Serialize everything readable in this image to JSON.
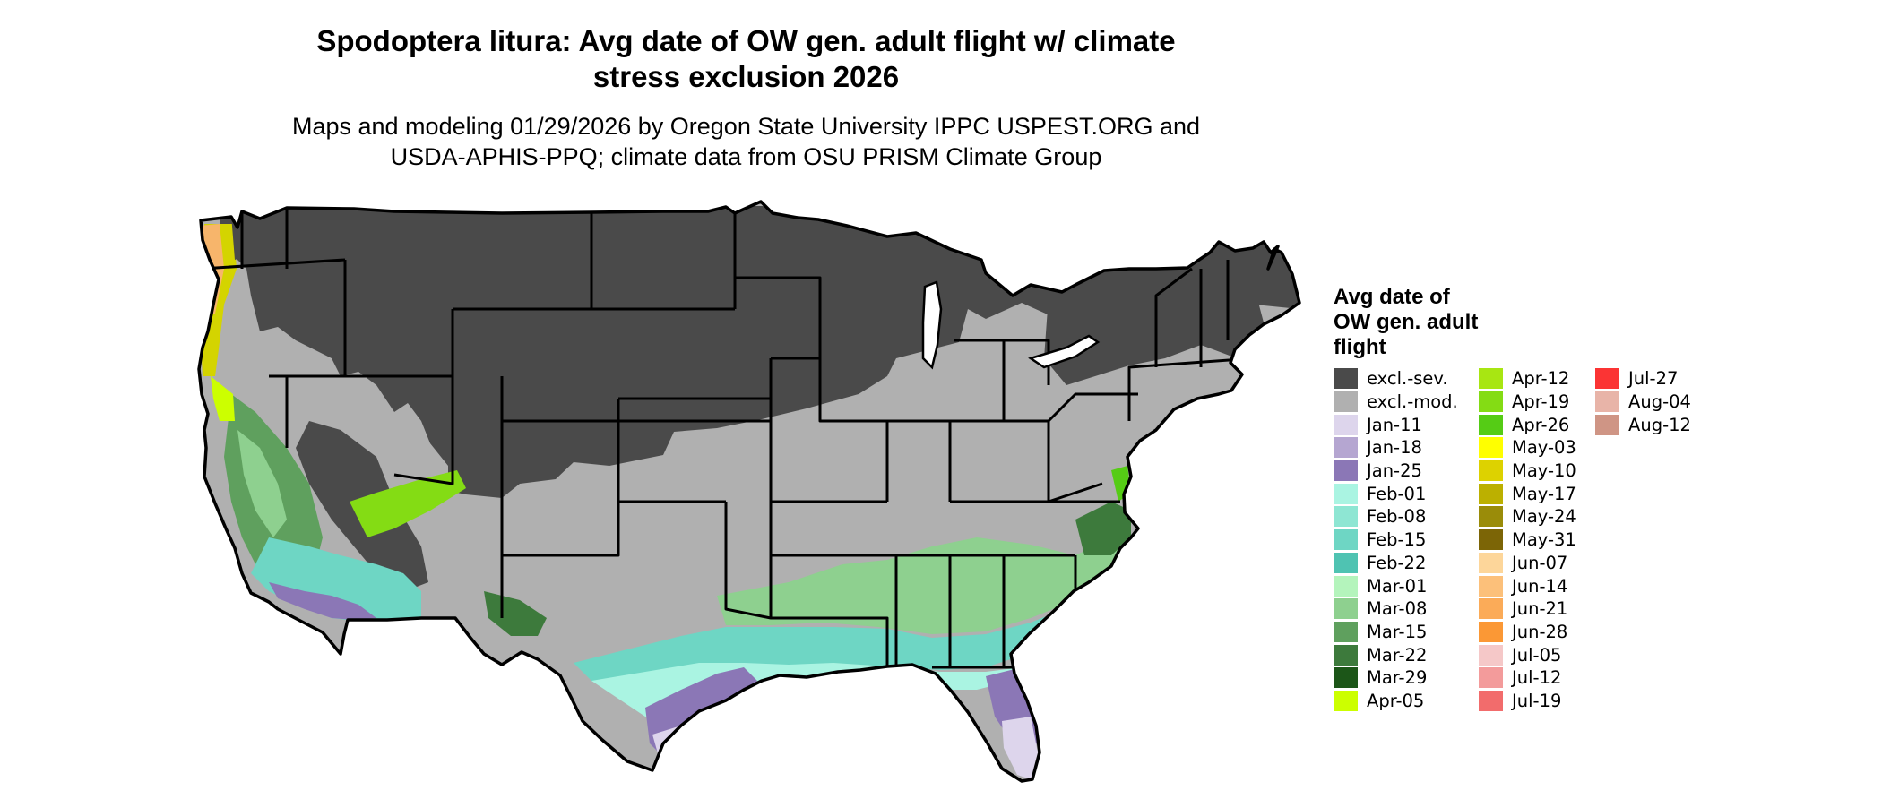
{
  "title": {
    "line1": "Spodoptera litura: Avg date of OW gen. adult flight w/ climate",
    "line2": "stress exclusion 2026"
  },
  "subtitle": {
    "line1": "Maps and modeling 01/29/2026 by Oregon State University IPPC USPEST.ORG and",
    "line2": "USDA-APHIS-PPQ; climate data from OSU PRISM Climate Group"
  },
  "legend": {
    "title_lines": [
      "Avg date of",
      "OW gen. adult",
      "flight"
    ],
    "items": [
      {
        "label": "excl.-sev.",
        "color": "#4a4a4a"
      },
      {
        "label": "excl.-mod.",
        "color": "#b0b0b0"
      },
      {
        "label": "Jan-11",
        "color": "#ddd5ec"
      },
      {
        "label": "Jan-18",
        "color": "#b5a6d1"
      },
      {
        "label": "Jan-25",
        "color": "#8b77b6"
      },
      {
        "label": "Feb-01",
        "color": "#aaf4e2"
      },
      {
        "label": "Feb-08",
        "color": "#8ee6d3"
      },
      {
        "label": "Feb-15",
        "color": "#6ed6c4"
      },
      {
        "label": "Feb-22",
        "color": "#4fc3b2"
      },
      {
        "label": "Mar-01",
        "color": "#b4f4bc"
      },
      {
        "label": "Mar-08",
        "color": "#8ed08f"
      },
      {
        "label": "Mar-15",
        "color": "#5fa05e"
      },
      {
        "label": "Mar-22",
        "color": "#3d7a3c"
      },
      {
        "label": "Mar-29",
        "color": "#1c5618"
      },
      {
        "label": "Apr-05",
        "color": "#ccff00"
      },
      {
        "label": "Apr-12",
        "color": "#a8e612"
      },
      {
        "label": "Apr-19",
        "color": "#84dc14"
      },
      {
        "label": "Apr-26",
        "color": "#55cc15"
      },
      {
        "label": "May-03",
        "color": "#ffff00"
      },
      {
        "label": "May-10",
        "color": "#ddd200"
      },
      {
        "label": "May-17",
        "color": "#bcb000"
      },
      {
        "label": "May-24",
        "color": "#9a8c09"
      },
      {
        "label": "May-31",
        "color": "#7c6506"
      },
      {
        "label": "Jun-07",
        "color": "#fdd69a"
      },
      {
        "label": "Jun-14",
        "color": "#fcc07a"
      },
      {
        "label": "Jun-21",
        "color": "#fbab58"
      },
      {
        "label": "Jun-28",
        "color": "#fb9835"
      },
      {
        "label": "Jul-05",
        "color": "#f5c8c8"
      },
      {
        "label": "Jul-12",
        "color": "#f39b9b"
      },
      {
        "label": "Jul-19",
        "color": "#f26c6c"
      },
      {
        "label": "Jul-27",
        "color": "#fb3434"
      },
      {
        "label": "Aug-04",
        "color": "#e8b4a8"
      },
      {
        "label": "Aug-12",
        "color": "#cf9585"
      }
    ]
  }
}
